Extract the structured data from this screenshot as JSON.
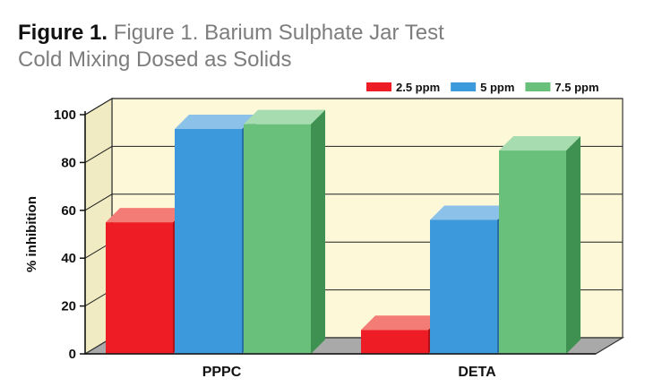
{
  "figure": {
    "label": "Figure 1.",
    "title_line1": "Figure 1. Barium Sulphate Jar Test",
    "title_line2": "Cold Mixing Dosed as Solids"
  },
  "chart_data": {
    "type": "bar",
    "categories": [
      "PPPC",
      "DETA"
    ],
    "series": [
      {
        "name": "2.5 ppm",
        "values": [
          55,
          10
        ],
        "color": "#ee1c25",
        "top": "#f47c77",
        "side": "#b01219"
      },
      {
        "name": "5 ppm",
        "values": [
          94,
          56
        ],
        "color": "#3b99dc",
        "top": "#8cc1ea",
        "side": "#2a6fa3"
      },
      {
        "name": "7.5 ppm",
        "values": [
          96,
          85
        ],
        "color": "#68c07a",
        "top": "#a7dbb0",
        "side": "#3f9151"
      }
    ],
    "ylabel": "% inhibition",
    "xlabel": "",
    "ylim": [
      0,
      100
    ],
    "yticks": [
      0,
      20,
      40,
      60,
      80,
      100
    ],
    "grid": true,
    "legend_position": "top-right",
    "style": "3d-bar",
    "plot_background": "#fdf8d8"
  }
}
